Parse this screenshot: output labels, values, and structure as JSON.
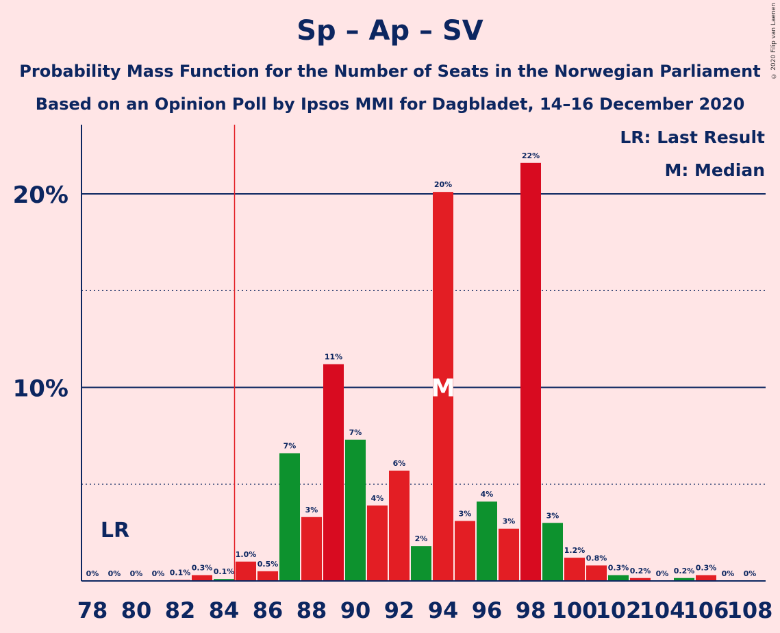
{
  "title": "Sp – Ap – SV",
  "subtitle1": "Probability Mass Function for the Number of Seats in the Norwegian Parliament",
  "subtitle2": "Based on an Opinion Poll by Ipsos MMI for Dagbladet, 14–16 December 2020",
  "copyright": "© 2020 Filip van Laenen",
  "legend": {
    "lr": "LR: Last Result",
    "m": "M: Median"
  },
  "colors": {
    "background": "#FFE5E6",
    "text": "#0C2660",
    "red": "#E31E24",
    "darkred": "#D80B20",
    "green": "#0D922E",
    "lr_line": "#E31E24"
  },
  "chart_data": {
    "type": "bar",
    "x": [
      78,
      79,
      80,
      81,
      82,
      83,
      84,
      85,
      86,
      87,
      88,
      89,
      90,
      91,
      92,
      93,
      94,
      95,
      96,
      97,
      98,
      99,
      100,
      101,
      102,
      103,
      104,
      105,
      106,
      107,
      108
    ],
    "values": [
      0,
      0,
      0,
      0,
      0.05,
      0.3,
      0.1,
      1.0,
      0.5,
      6.6,
      3.3,
      11.2,
      7.3,
      3.9,
      5.7,
      1.8,
      20.1,
      3.1,
      4.1,
      2.7,
      21.6,
      3.0,
      1.2,
      0.8,
      0.3,
      0.15,
      0,
      0.15,
      0.3,
      0,
      0
    ],
    "labels": [
      "0%",
      "0%",
      "0%",
      "0%",
      "0.1%",
      "0.3%",
      "0.1%",
      "1.0%",
      "0.5%",
      "7%",
      "3%",
      "11%",
      "7%",
      "4%",
      "6%",
      "2%",
      "20%",
      "3%",
      "4%",
      "3%",
      "22%",
      "3%",
      "1.2%",
      "0.8%",
      "0.3%",
      "0.2%",
      "0%",
      "0.2%",
      "0.3%",
      "0%",
      "0%"
    ],
    "bar_colors": [
      "red",
      "red",
      "red",
      "red",
      "red",
      "red",
      "green",
      "red",
      "red",
      "green",
      "red",
      "darkred",
      "green",
      "red",
      "red",
      "green",
      "red",
      "red",
      "green",
      "red",
      "darkred",
      "green",
      "red",
      "red",
      "green",
      "red",
      "red",
      "green",
      "red",
      "red",
      "red"
    ],
    "x_tick_labels": [
      "78",
      "80",
      "82",
      "84",
      "86",
      "88",
      "90",
      "92",
      "94",
      "96",
      "98",
      "100",
      "102",
      "104",
      "106",
      "108"
    ],
    "y_tick_labels": [
      "10%",
      "20%"
    ],
    "y_ticks": [
      10,
      20
    ],
    "y_minor_ticks": [
      5,
      15
    ],
    "ylim": [
      0,
      23.6
    ],
    "last_result": 85,
    "last_result_label": "LR",
    "median": 94,
    "median_label": "M"
  }
}
